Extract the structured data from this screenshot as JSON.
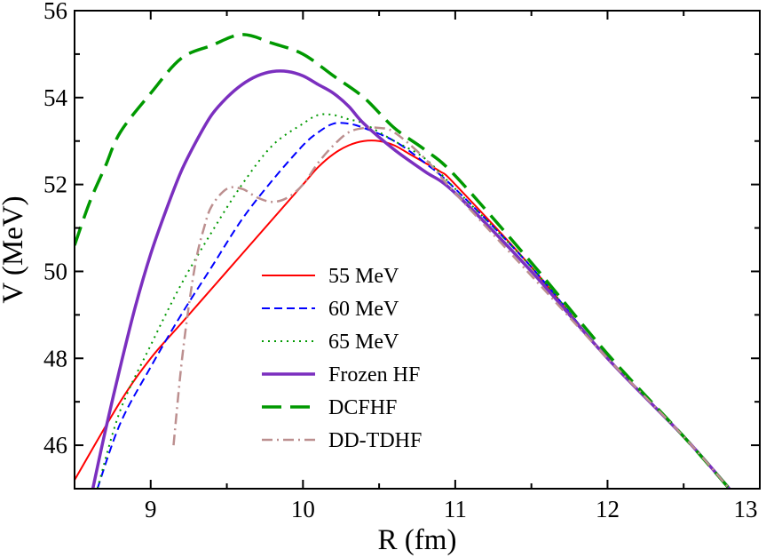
{
  "chart_data": {
    "type": "line",
    "title": "",
    "xlabel": "R (fm)",
    "ylabel": "V (MeV)",
    "xlim": [
      8.5,
      13
    ],
    "ylim": [
      45,
      56
    ],
    "xticks": [
      9,
      10,
      11,
      12,
      13
    ],
    "yticks": [
      46,
      48,
      50,
      52,
      54,
      56
    ],
    "grid": false,
    "legend_position": "center-left",
    "series": [
      {
        "name": "55 MeV",
        "color": "#ff0000",
        "style": "solid",
        "x": [
          8.5,
          8.8,
          9.0,
          9.2,
          9.4,
          9.6,
          9.8,
          10.0,
          10.1,
          10.2,
          10.3,
          10.4,
          10.5,
          10.6,
          10.7,
          10.8,
          10.9,
          11.0,
          11.5,
          12.0,
          12.5,
          12.8
        ],
        "y": [
          45.2,
          47.0,
          48.0,
          48.8,
          49.6,
          50.4,
          51.2,
          52.0,
          52.4,
          52.7,
          52.9,
          53.0,
          53.0,
          52.9,
          52.7,
          52.5,
          52.3,
          52.0,
          50.1,
          48.0,
          46.2,
          45.0
        ]
      },
      {
        "name": "60 MeV",
        "color": "#0000ff",
        "style": "dashed",
        "x": [
          8.65,
          8.8,
          9.0,
          9.2,
          9.4,
          9.6,
          9.8,
          10.0,
          10.1,
          10.2,
          10.3,
          10.4,
          10.6,
          10.8,
          11.0,
          11.5,
          12.0,
          12.5,
          12.8
        ],
        "y": [
          45.0,
          46.5,
          47.8,
          49.0,
          50.1,
          51.2,
          52.1,
          52.9,
          53.2,
          53.4,
          53.4,
          53.3,
          53.0,
          52.5,
          51.9,
          50.1,
          48.0,
          46.2,
          45.0
        ]
      },
      {
        "name": "65 MeV",
        "color": "#009900",
        "style": "dotted",
        "x": [
          8.65,
          8.8,
          9.0,
          9.2,
          9.4,
          9.6,
          9.8,
          10.0,
          10.1,
          10.2,
          10.3,
          10.4,
          10.6,
          10.8,
          11.0,
          11.5,
          12.0,
          12.5,
          12.8
        ],
        "y": [
          45.0,
          46.8,
          48.3,
          49.7,
          50.9,
          52.0,
          52.9,
          53.4,
          53.6,
          53.6,
          53.5,
          53.4,
          53.0,
          52.6,
          51.9,
          50.1,
          48.0,
          46.2,
          45.0
        ]
      },
      {
        "name": "Frozen HF",
        "color": "#7b2fbf",
        "style": "solid-thick",
        "x": [
          8.62,
          8.7,
          8.8,
          8.9,
          9.0,
          9.1,
          9.2,
          9.3,
          9.4,
          9.5,
          9.6,
          9.7,
          9.8,
          9.9,
          10.0,
          10.1,
          10.2,
          10.3,
          10.4,
          10.6,
          10.8,
          11.0,
          11.5,
          12.0,
          12.5,
          12.8
        ],
        "y": [
          45.0,
          46.3,
          47.8,
          49.2,
          50.4,
          51.4,
          52.3,
          53.0,
          53.6,
          54.0,
          54.3,
          54.5,
          54.6,
          54.6,
          54.5,
          54.3,
          54.1,
          53.8,
          53.4,
          52.8,
          52.3,
          51.8,
          50.0,
          48.0,
          46.2,
          45.0
        ]
      },
      {
        "name": "DCFHF",
        "color": "#009900",
        "style": "long-dash",
        "x": [
          8.5,
          8.6,
          8.7,
          8.8,
          9.0,
          9.2,
          9.4,
          9.6,
          9.8,
          10.0,
          10.2,
          10.4,
          10.6,
          10.8,
          11.0,
          11.5,
          12.0,
          12.5,
          12.8
        ],
        "y": [
          50.6,
          51.6,
          52.4,
          53.2,
          54.1,
          54.9,
          55.2,
          55.45,
          55.25,
          55.0,
          54.5,
          54.0,
          53.3,
          52.8,
          52.2,
          50.2,
          48.1,
          46.2,
          45.0
        ]
      },
      {
        "name": "DD-TDHF",
        "color": "#bc8f8f",
        "style": "dash-dot",
        "x": [
          9.15,
          9.2,
          9.25,
          9.3,
          9.35,
          9.4,
          9.5,
          9.6,
          9.7,
          9.8,
          9.9,
          10.0,
          10.1,
          10.2,
          10.3,
          10.4,
          10.5,
          10.6,
          10.8,
          11.0,
          11.5,
          12.0,
          12.5,
          12.8
        ],
        "y": [
          46.0,
          47.8,
          49.2,
          50.3,
          51.0,
          51.5,
          51.9,
          51.9,
          51.7,
          51.6,
          51.7,
          52.0,
          52.5,
          52.9,
          53.2,
          53.3,
          53.3,
          53.2,
          52.6,
          51.8,
          49.9,
          48.0,
          46.2,
          45.0
        ]
      }
    ]
  }
}
